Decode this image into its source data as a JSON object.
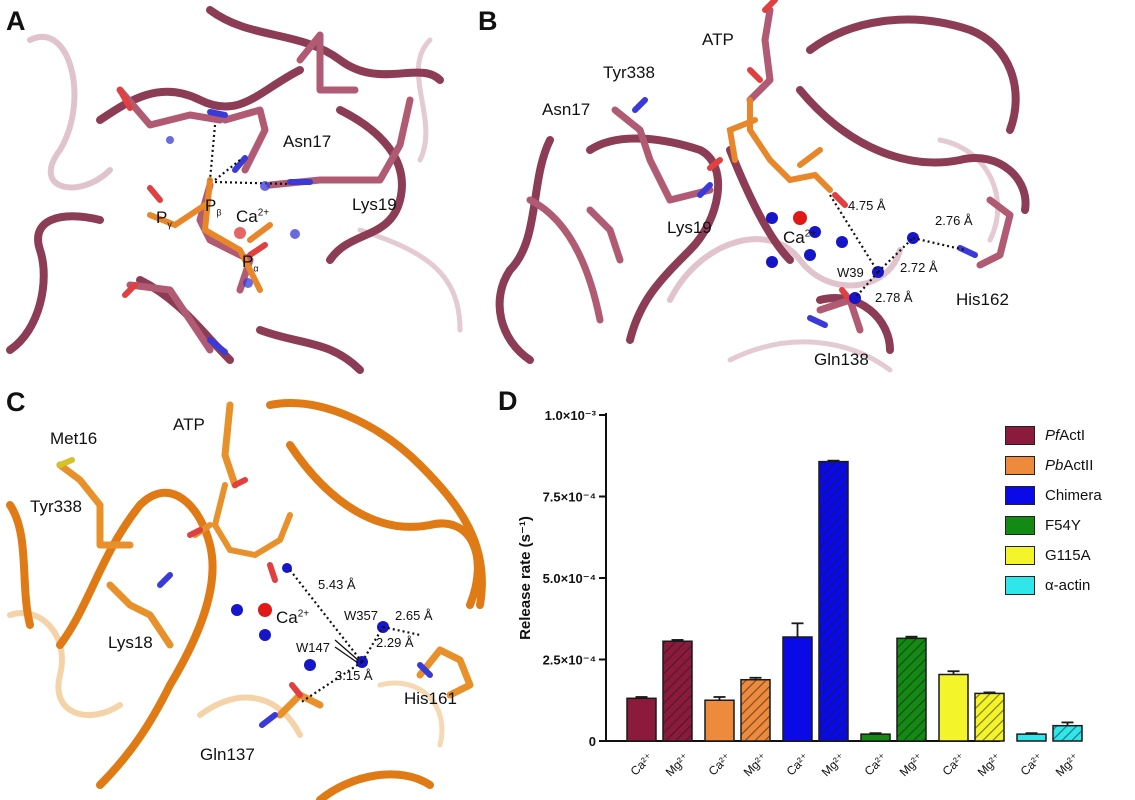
{
  "panels": {
    "A": {
      "label": "A",
      "residues": {
        "asn17": "Asn17",
        "lys19": "Lys19",
        "ca": "Ca",
        "ca_charge": "2+"
      },
      "phosphates": {
        "pg": "P",
        "pg_sub": "γ",
        "pb": "P",
        "pb_sub": "β",
        "pa": "P",
        "pa_sub": "α"
      }
    },
    "B": {
      "label": "B",
      "residues": {
        "atp": "ATP",
        "tyr338": "Tyr338",
        "asn17": "Asn17",
        "lys19": "Lys19",
        "ca": "Ca",
        "ca_charge": "2+",
        "his162": "His162",
        "gln138": "Gln138",
        "w39": "W39"
      },
      "distances": {
        "d1": "4.75 Å",
        "d2": "2.76 Å",
        "d3": "2.72 Å",
        "d4": "2.78 Å"
      }
    },
    "C": {
      "label": "C",
      "residues": {
        "met16": "Met16",
        "atp": "ATP",
        "tyr338": "Tyr338",
        "lys18": "Lys18",
        "ca": "Ca",
        "ca_charge": "2+",
        "w357": "W357",
        "w147": "W147",
        "his161": "His161",
        "gln137": "Gln137"
      },
      "distances": {
        "d1": "5.43 Å",
        "d2": "2.65 Å",
        "d3": "2.29 Å",
        "d4": "3.15 Å"
      }
    },
    "D": {
      "label": "D"
    }
  },
  "chart_data": {
    "type": "bar",
    "title": "",
    "xlabel": "",
    "ylabel": "Release rate (s⁻¹)",
    "ylim": [
      0,
      0.001
    ],
    "yticks": [
      {
        "value": 0,
        "label": "0"
      },
      {
        "value": 0.00025,
        "label": "2.5×10⁻⁴"
      },
      {
        "value": 0.0005,
        "label": "5.0×10⁻⁴"
      },
      {
        "value": 0.00075,
        "label": "7.5×10⁻⁴"
      },
      {
        "value": 0.001,
        "label": "1.0×10⁻³"
      }
    ],
    "categories": [
      "Ca²⁺",
      "Mg²⁺"
    ],
    "legend_position": "right",
    "series": [
      {
        "name": "PfActI",
        "name_italic": "Pf",
        "name_rest": "ActI",
        "color": "#8b1a3c",
        "values": [
          0.000131,
          0.000306
        ],
        "errors": [
          4e-06,
          4e-06
        ]
      },
      {
        "name": "PbActII",
        "name_italic": "Pb",
        "name_rest": "ActII",
        "color": "#ee8a3c",
        "values": [
          0.000125,
          0.000188
        ],
        "errors": [
          1e-05,
          6e-06
        ]
      },
      {
        "name": "Chimera",
        "name_italic": "",
        "name_rest": "Chimera",
        "color": "#0a0ae8",
        "values": [
          0.000319,
          0.000857
        ],
        "errors": [
          4.2e-05,
          3e-06
        ]
      },
      {
        "name": "F54Y",
        "name_italic": "",
        "name_rest": "F54Y",
        "color": "#138a13",
        "values": [
          2.1e-05,
          0.000315
        ],
        "errors": [
          3e-06,
          5e-06
        ]
      },
      {
        "name": "G115A",
        "name_italic": "",
        "name_rest": "G115A",
        "color": "#f4f42a",
        "values": [
          0.000204,
          0.000146
        ],
        "errors": [
          1e-05,
          3e-06
        ]
      },
      {
        "name": "α-actin",
        "name_italic": "",
        "name_rest": "α-actin",
        "color": "#2fe6ea",
        "values": [
          2.1e-05,
          4.7e-05
        ],
        "errors": [
          3e-06,
          1e-05
        ]
      }
    ]
  }
}
